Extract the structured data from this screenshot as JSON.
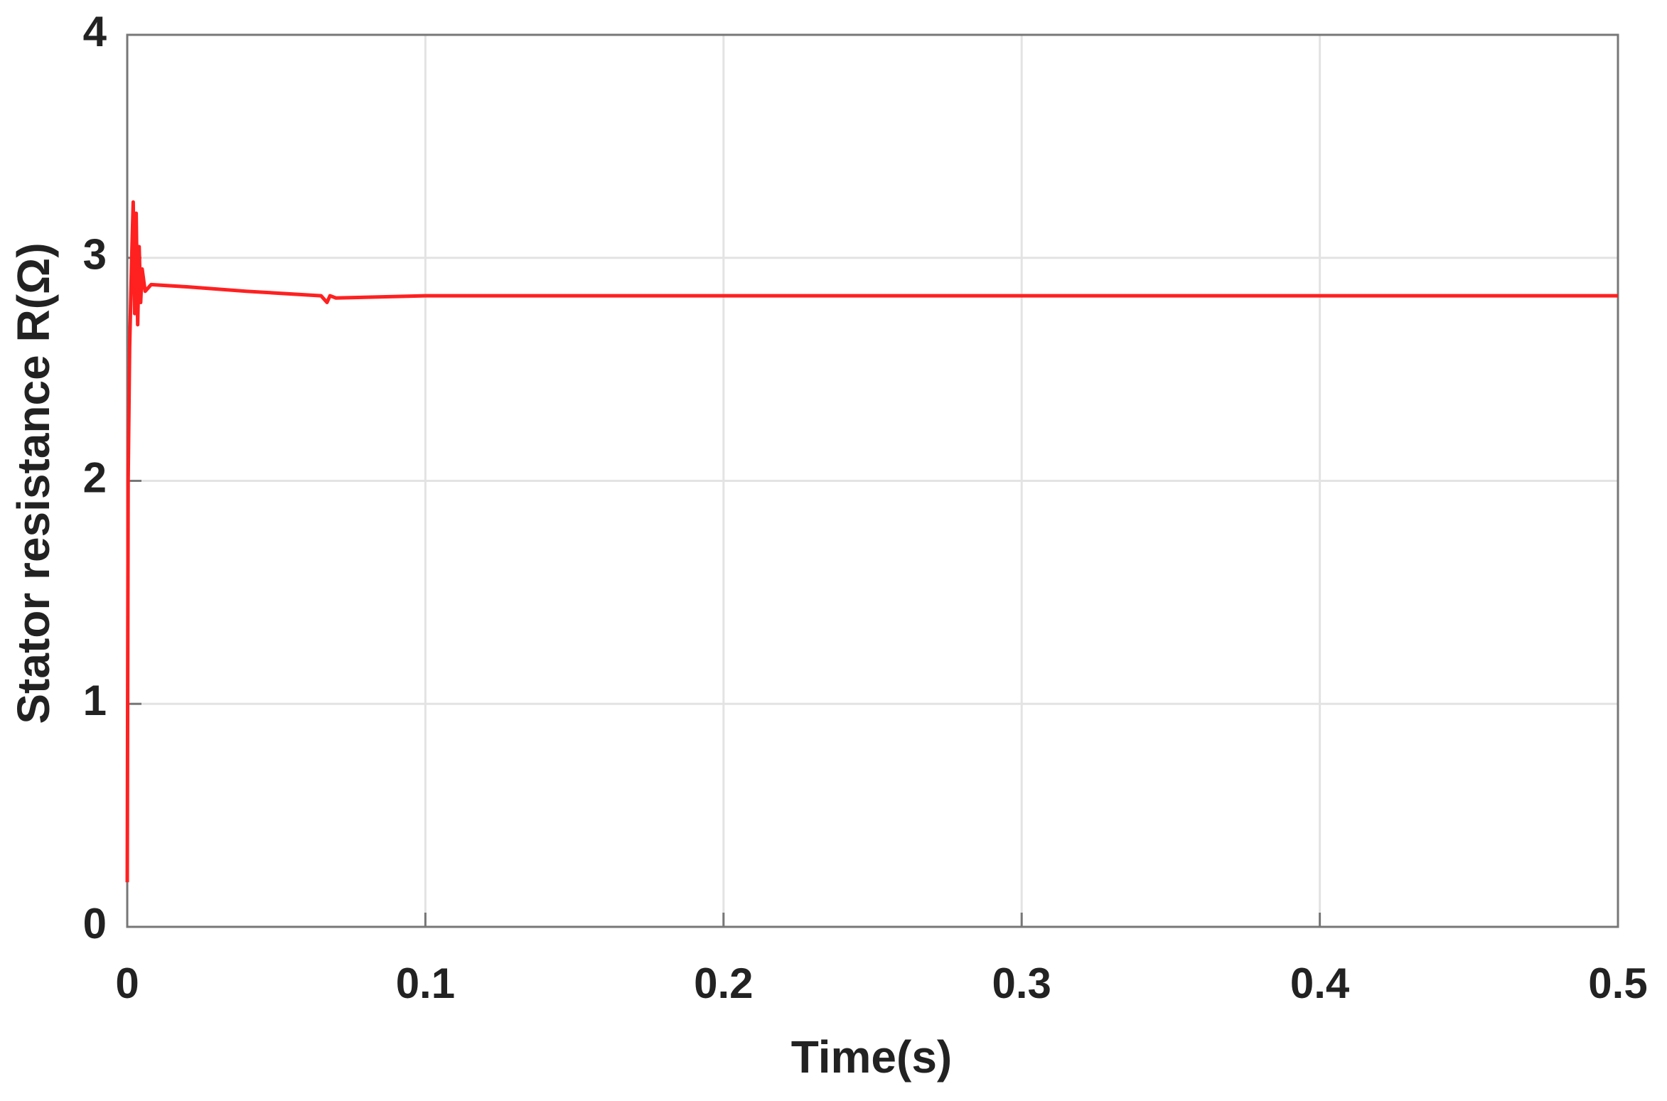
{
  "chart_data": {
    "type": "line",
    "xlabel": "Time(s)",
    "ylabel": "Stator resistance R(Ω)",
    "series": [
      {
        "color": "#ff2020",
        "x": [
          0,
          0.0003,
          0.0008,
          0.0015,
          0.002,
          0.0025,
          0.003,
          0.0035,
          0.004,
          0.0045,
          0.005,
          0.006,
          0.008,
          0.02,
          0.04,
          0.065,
          0.067,
          0.068,
          0.07,
          0.1,
          0.5
        ],
        "values": [
          0.2,
          2.0,
          2.6,
          3.0,
          3.25,
          2.75,
          3.2,
          2.7,
          3.05,
          2.8,
          2.95,
          2.85,
          2.88,
          2.87,
          2.85,
          2.83,
          2.8,
          2.83,
          2.82,
          2.83,
          2.83
        ]
      }
    ],
    "xlim": [
      0,
      0.5
    ],
    "xticks": [
      0,
      0.1,
      0.2,
      0.3,
      0.4,
      0.5
    ],
    "ylim": [
      0,
      4
    ],
    "yticks": [
      0,
      1,
      2,
      3,
      4
    ],
    "grid": true
  }
}
